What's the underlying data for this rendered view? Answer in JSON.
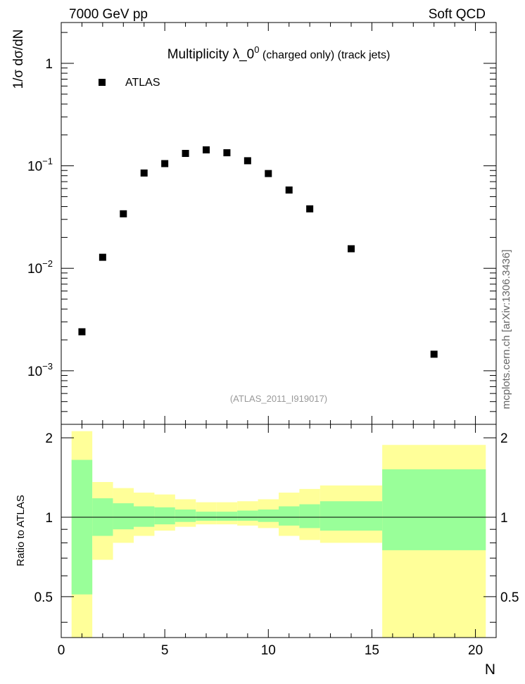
{
  "header": {
    "energy_label": "7000 GeV pp",
    "process_label": "Soft QCD"
  },
  "side_label": "mcplots.cern.ch [arXiv:1306.3436]",
  "chart_data": [
    {
      "type": "scatter",
      "title_main": "Multiplicity  λ_0",
      "title_sup": "0",
      "title_rest": " (charged only) (track jets)",
      "ylabel": "1/σ dσ/dN",
      "yscale": "log",
      "xlim": [
        0,
        21
      ],
      "ylim": [
        0.0003,
        2.5
      ],
      "legend": "top-left",
      "analysis_label": "(ATLAS_2011_I919017)",
      "y_ticks": [
        {
          "value": 0.001,
          "base": "10",
          "exp": "−3"
        },
        {
          "value": 0.01,
          "base": "10",
          "exp": "−2"
        },
        {
          "value": 0.1,
          "base": "10",
          "exp": "−1"
        },
        {
          "value": 1,
          "base": "1",
          "exp": ""
        }
      ],
      "series": [
        {
          "name": "ATLAS",
          "color": "#000000",
          "x": [
            1,
            2,
            3,
            4,
            5,
            6,
            7,
            8,
            9,
            10,
            11,
            12,
            14,
            18
          ],
          "y": [
            0.0024,
            0.0128,
            0.034,
            0.085,
            0.105,
            0.132,
            0.143,
            0.134,
            0.112,
            0.084,
            0.058,
            0.038,
            0.0155,
            0.00145
          ]
        }
      ]
    },
    {
      "type": "area",
      "ylabel": "Ratio to ATLAS",
      "xlabel": "N",
      "xlim": [
        0,
        21
      ],
      "ylim": [
        0.35,
        2.25
      ],
      "x_ticks": [
        "0",
        "5",
        "10",
        "15",
        "20"
      ],
      "y_ticks": [
        "0.5",
        "1",
        "2"
      ],
      "reference_line": 1,
      "bins": {
        "x_low": [
          0.5,
          1.5,
          2.5,
          3.5,
          4.5,
          5.5,
          6.5,
          7.5,
          8.5,
          9.5,
          10.5,
          11.5,
          12.5,
          15.5
        ],
        "x_high": [
          1.5,
          2.5,
          3.5,
          4.5,
          5.5,
          6.5,
          7.5,
          8.5,
          9.5,
          10.5,
          11.5,
          12.5,
          15.5,
          20.5
        ],
        "green_low": [
          0.51,
          0.85,
          0.9,
          0.92,
          0.94,
          0.96,
          0.97,
          0.97,
          0.97,
          0.96,
          0.93,
          0.91,
          0.89,
          0.75
        ],
        "green_high": [
          1.65,
          1.18,
          1.13,
          1.1,
          1.09,
          1.07,
          1.05,
          1.05,
          1.06,
          1.07,
          1.1,
          1.12,
          1.15,
          1.52
        ],
        "yellow_low": [
          0.35,
          0.69,
          0.8,
          0.85,
          0.89,
          0.92,
          0.94,
          0.94,
          0.93,
          0.91,
          0.85,
          0.82,
          0.8,
          0.35
        ],
        "yellow_high": [
          2.12,
          1.36,
          1.29,
          1.24,
          1.22,
          1.17,
          1.14,
          1.14,
          1.15,
          1.17,
          1.24,
          1.28,
          1.32,
          1.88
        ]
      },
      "colors": {
        "green": "#99ff99",
        "yellow": "#ffff99"
      }
    }
  ]
}
